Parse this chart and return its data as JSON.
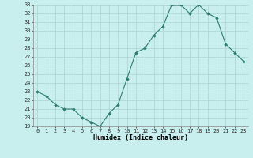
{
  "x": [
    0,
    1,
    2,
    3,
    4,
    5,
    6,
    7,
    8,
    9,
    10,
    11,
    12,
    13,
    14,
    15,
    16,
    17,
    18,
    19,
    20,
    21,
    22,
    23
  ],
  "y": [
    23.0,
    22.5,
    21.5,
    21.0,
    21.0,
    20.0,
    19.5,
    19.0,
    20.5,
    21.5,
    24.5,
    27.5,
    28.0,
    29.5,
    30.5,
    33.0,
    33.0,
    32.0,
    33.0,
    32.0,
    31.5,
    28.5,
    27.5,
    26.5
  ],
  "xlabel": "Humidex (Indice chaleur)",
  "xlim": [
    -0.5,
    23.5
  ],
  "ylim": [
    19,
    33
  ],
  "yticks": [
    19,
    20,
    21,
    22,
    23,
    24,
    25,
    26,
    27,
    28,
    29,
    30,
    31,
    32,
    33
  ],
  "xticks": [
    0,
    1,
    2,
    3,
    4,
    5,
    6,
    7,
    8,
    9,
    10,
    11,
    12,
    13,
    14,
    15,
    16,
    17,
    18,
    19,
    20,
    21,
    22,
    23
  ],
  "line_color": "#2e7d6e",
  "marker": "D",
  "marker_size": 1.8,
  "bg_color": "#c8eeee",
  "grid_color": "#aad4d4",
  "label_fontsize": 6.0,
  "tick_fontsize": 5.0
}
